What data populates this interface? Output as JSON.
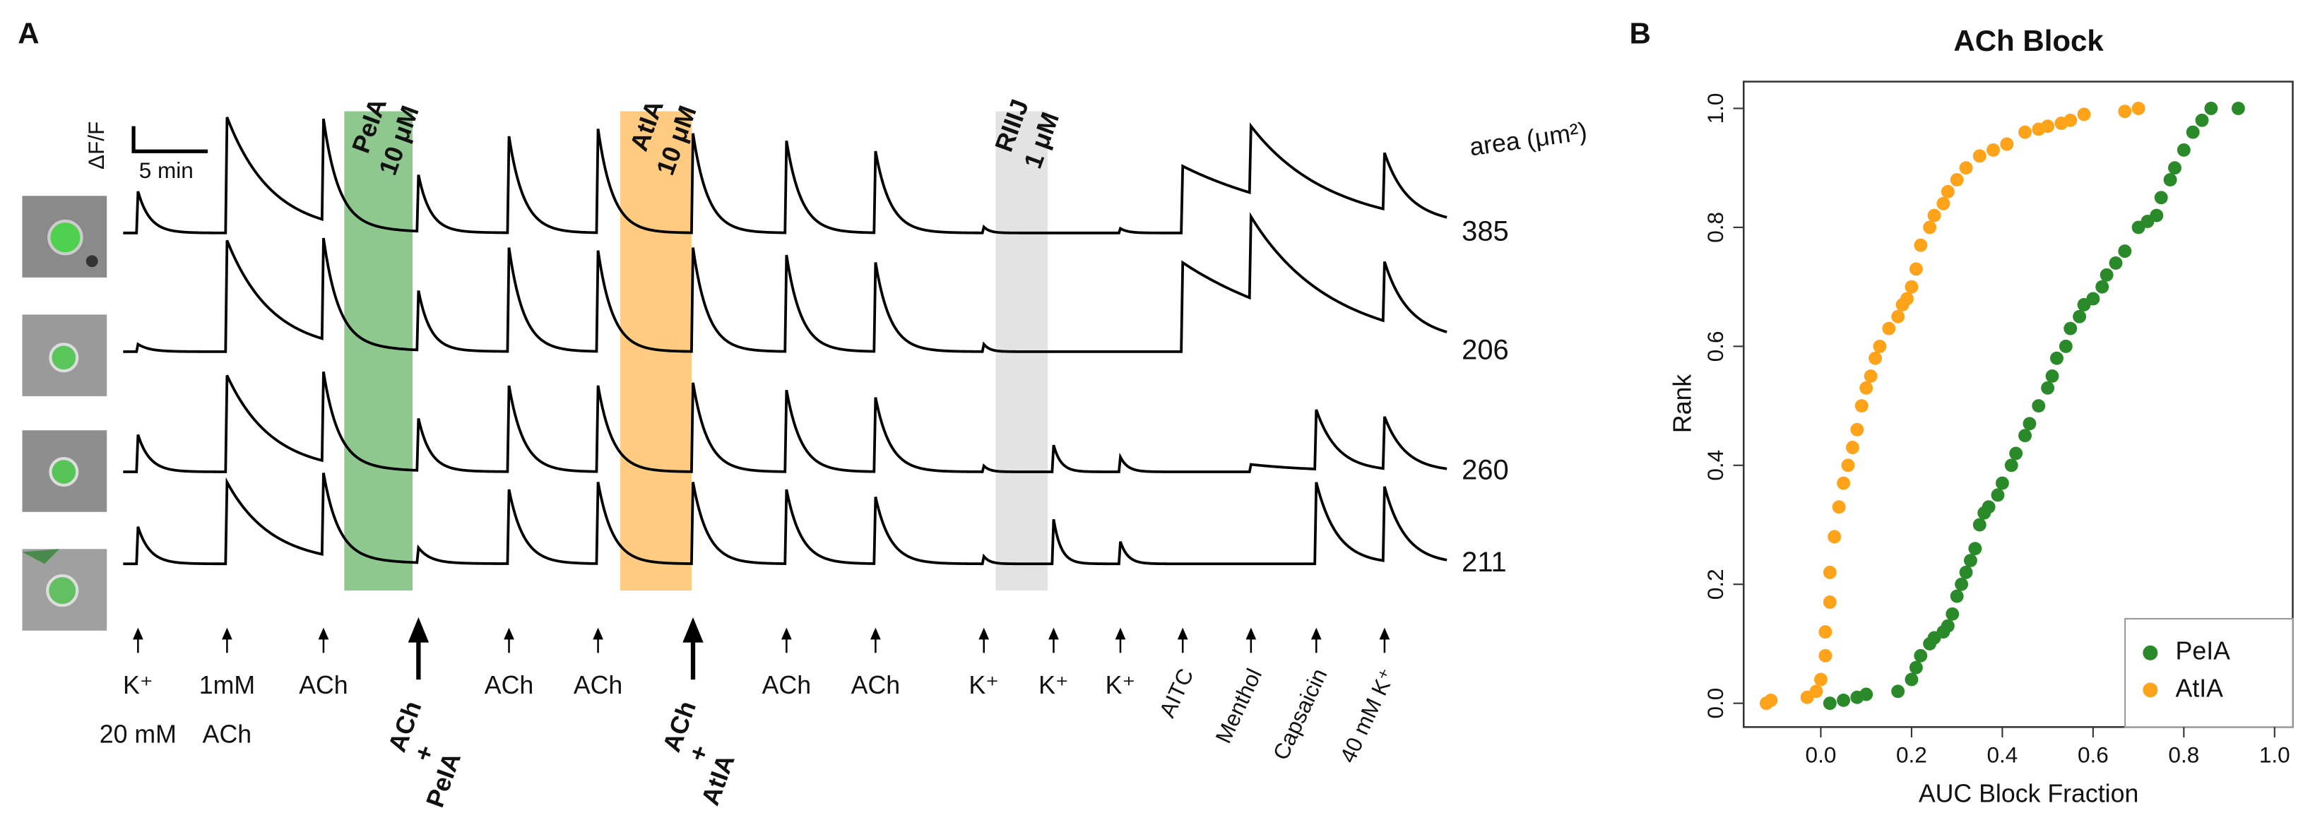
{
  "panel_a": {
    "label": "A",
    "scale_bar": {
      "y_label": "ΔF/F",
      "x_label": "5 min"
    },
    "treatments": [
      {
        "name": "PeIA",
        "conc": "10 μM"
      },
      {
        "name": "AtIA",
        "conc": "10 μM"
      },
      {
        "name": "RIIIJ",
        "conc": "1 μM"
      }
    ],
    "area_header": "area (μm²)",
    "areas": [
      385,
      206,
      260,
      211
    ],
    "stimuli": [
      [
        "K⁺",
        "20 mM"
      ],
      [
        "1mM",
        "ACh"
      ],
      [
        "ACh"
      ],
      [
        "ACh",
        "+",
        "PeIA"
      ],
      [
        "ACh"
      ],
      [
        "ACh"
      ],
      [
        "ACh",
        "+",
        "AtIA"
      ],
      [
        "ACh"
      ],
      [
        "ACh"
      ],
      [
        "K⁺"
      ],
      [
        "K⁺"
      ],
      [
        "K⁺"
      ],
      [
        "AITC"
      ],
      [
        "Menthol"
      ],
      [
        "Capsaicin"
      ],
      [
        "40 mM K⁺"
      ]
    ]
  },
  "chart_data": {
    "type": "scatter",
    "label": "B",
    "title": "ACh Block",
    "x_label": "AUC Block Fraction",
    "y_label": "Rank",
    "xlim": [
      -0.17,
      1.04
    ],
    "ylim": [
      -0.04,
      1.045
    ],
    "xticks": [
      {
        "value": 0,
        "label": "0.0"
      },
      0.2,
      0.4,
      0.6,
      0.8,
      {
        "value": 1,
        "label": "1.0"
      }
    ],
    "yticks": [
      {
        "value": 0,
        "label": "0.0"
      },
      0.2,
      0.4,
      0.6,
      0.8,
      {
        "value": 1,
        "label": "1.0"
      }
    ],
    "legend_position": "bottom-right",
    "series": [
      {
        "name": "PeIA",
        "color": "#2a8a2a",
        "x": [
          0.02,
          0.05,
          0.08,
          0.1,
          0.17,
          0.2,
          0.21,
          0.22,
          0.24,
          0.25,
          0.27,
          0.28,
          0.29,
          0.3,
          0.31,
          0.32,
          0.33,
          0.34,
          0.35,
          0.36,
          0.37,
          0.39,
          0.4,
          0.42,
          0.43,
          0.45,
          0.46,
          0.48,
          0.5,
          0.51,
          0.52,
          0.54,
          0.55,
          0.57,
          0.58,
          0.6,
          0.62,
          0.63,
          0.65,
          0.67,
          0.7,
          0.72,
          0.74,
          0.75,
          0.77,
          0.78,
          0.8,
          0.82,
          0.84,
          0.86,
          0.92
        ],
        "values": [
          0.0,
          0.005,
          0.01,
          0.015,
          0.02,
          0.04,
          0.06,
          0.08,
          0.1,
          0.11,
          0.12,
          0.13,
          0.15,
          0.18,
          0.2,
          0.22,
          0.24,
          0.26,
          0.3,
          0.32,
          0.33,
          0.35,
          0.37,
          0.4,
          0.42,
          0.45,
          0.47,
          0.5,
          0.53,
          0.55,
          0.58,
          0.6,
          0.63,
          0.65,
          0.67,
          0.68,
          0.7,
          0.72,
          0.74,
          0.76,
          0.8,
          0.81,
          0.82,
          0.85,
          0.88,
          0.9,
          0.93,
          0.96,
          0.98,
          1.0,
          1.0
        ]
      },
      {
        "name": "AtIA",
        "color": "#ffa31a",
        "x": [
          -0.12,
          -0.11,
          -0.03,
          -0.01,
          0.0,
          0.01,
          0.01,
          0.02,
          0.02,
          0.03,
          0.04,
          0.05,
          0.06,
          0.07,
          0.08,
          0.09,
          0.1,
          0.11,
          0.12,
          0.13,
          0.15,
          0.17,
          0.18,
          0.19,
          0.2,
          0.21,
          0.22,
          0.24,
          0.25,
          0.27,
          0.28,
          0.3,
          0.32,
          0.35,
          0.38,
          0.41,
          0.45,
          0.48,
          0.5,
          0.53,
          0.55,
          0.58,
          0.67,
          0.7
        ],
        "values": [
          0.0,
          0.005,
          0.01,
          0.02,
          0.04,
          0.08,
          0.12,
          0.17,
          0.22,
          0.28,
          0.33,
          0.37,
          0.4,
          0.43,
          0.46,
          0.5,
          0.53,
          0.55,
          0.58,
          0.6,
          0.63,
          0.65,
          0.67,
          0.68,
          0.7,
          0.73,
          0.77,
          0.8,
          0.82,
          0.84,
          0.86,
          0.88,
          0.9,
          0.92,
          0.93,
          0.94,
          0.96,
          0.965,
          0.97,
          0.975,
          0.98,
          0.99,
          0.995,
          1.0
        ]
      }
    ]
  }
}
